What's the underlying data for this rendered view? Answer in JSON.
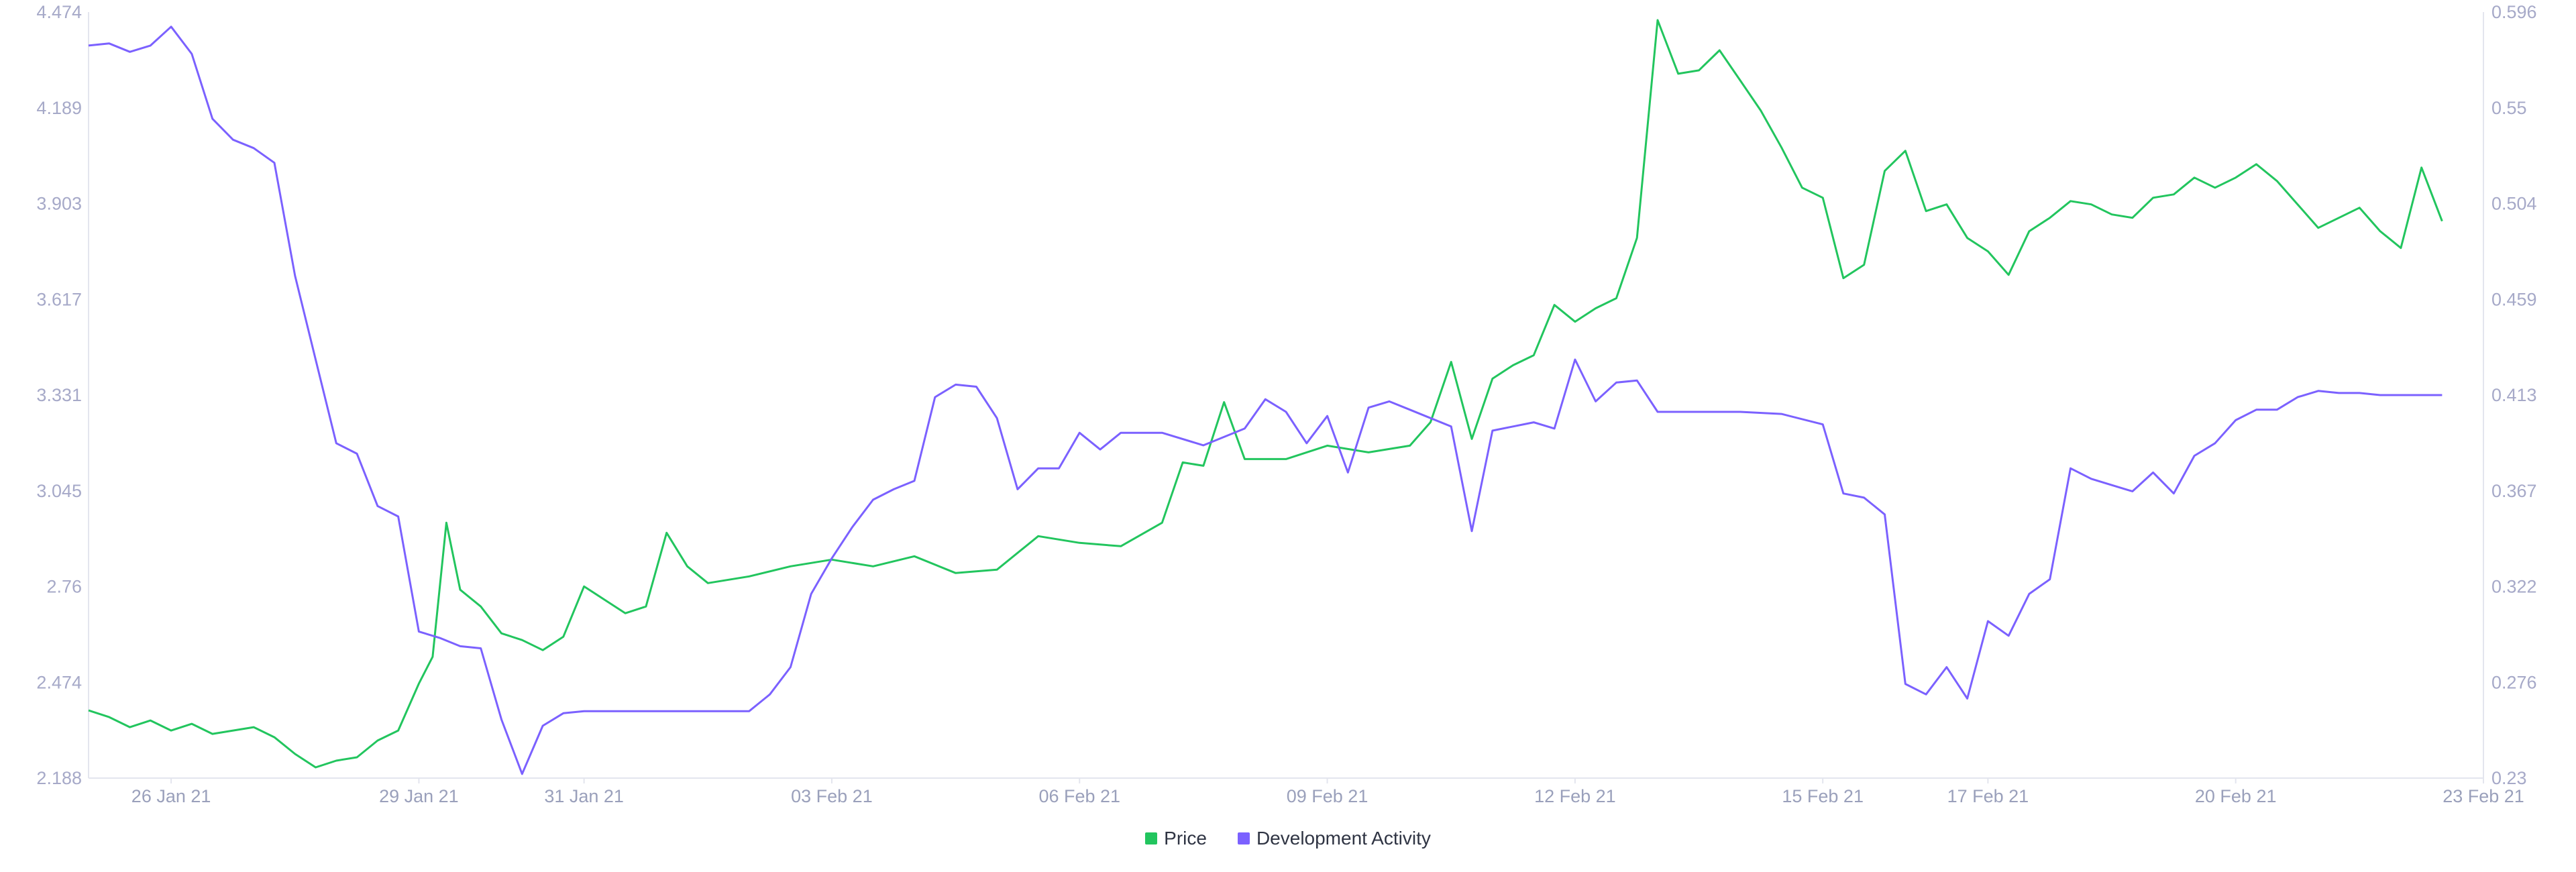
{
  "colors": {
    "price": "#22c55e",
    "development_activity": "#7b61ff",
    "axis_text": "#a6a9c8",
    "axis_line": "#e3e5ee"
  },
  "legend": {
    "price_label": "Price",
    "development_activity_label": "Development Activity"
  },
  "chart_data": {
    "type": "line",
    "title": "",
    "grid": false,
    "legend_position": "bottom-center",
    "x": {
      "start": "25 Jan 21",
      "end": "23 Feb 21",
      "tick_labels": [
        "26 Jan 21",
        "29 Jan 21",
        "31 Jan 21",
        "03 Feb 21",
        "06 Feb 21",
        "09 Feb 21",
        "12 Feb 21",
        "15 Feb 21",
        "17 Feb 21",
        "20 Feb 21",
        "23 Feb 21"
      ]
    },
    "y_left": {
      "range": [
        2.188,
        4.474
      ],
      "tick_labels": [
        "4.474",
        "4.189",
        "3.903",
        "3.617",
        "3.331",
        "3.045",
        "2.76",
        "2.474",
        "2.188"
      ]
    },
    "y_right": {
      "range": [
        0.23,
        0.596
      ],
      "tick_labels": [
        "0.596",
        "0.55",
        "0.504",
        "0.459",
        "0.413",
        "0.367",
        "0.322",
        "0.276",
        "0.23"
      ]
    },
    "series": [
      {
        "name": "Price",
        "axis": "left",
        "points": [
          [
            "2021-01-25",
            2.39
          ],
          [
            "2021-01-25T06",
            2.37
          ],
          [
            "2021-01-25T12",
            2.34
          ],
          [
            "2021-01-25T18",
            2.36
          ],
          [
            "2021-01-26",
            2.33
          ],
          [
            "2021-01-26T06",
            2.35
          ],
          [
            "2021-01-26T12",
            2.32
          ],
          [
            "2021-01-26T18",
            2.33
          ],
          [
            "2021-01-27",
            2.34
          ],
          [
            "2021-01-27T06",
            2.31
          ],
          [
            "2021-01-27T12",
            2.26
          ],
          [
            "2021-01-27T18",
            2.22
          ],
          [
            "2021-01-28",
            2.24
          ],
          [
            "2021-01-28T06",
            2.25
          ],
          [
            "2021-01-28T12",
            2.3
          ],
          [
            "2021-01-28T18",
            2.33
          ],
          [
            "2021-01-29",
            2.47
          ],
          [
            "2021-01-29T04",
            2.55
          ],
          [
            "2021-01-29T08",
            2.95
          ],
          [
            "2021-01-29T12",
            2.75
          ],
          [
            "2021-01-29T18",
            2.7
          ],
          [
            "2021-01-30",
            2.62
          ],
          [
            "2021-01-30T06",
            2.6
          ],
          [
            "2021-01-30T12",
            2.57
          ],
          [
            "2021-01-30T18",
            2.61
          ],
          [
            "2021-01-31",
            2.76
          ],
          [
            "2021-01-31T06",
            2.72
          ],
          [
            "2021-01-31T12",
            2.68
          ],
          [
            "2021-01-31T18",
            2.7
          ],
          [
            "2021-02-01",
            2.92
          ],
          [
            "2021-02-01T06",
            2.82
          ],
          [
            "2021-02-01T12",
            2.77
          ],
          [
            "2021-02-02",
            2.79
          ],
          [
            "2021-02-02T12",
            2.82
          ],
          [
            "2021-02-03",
            2.84
          ],
          [
            "2021-02-03T12",
            2.82
          ],
          [
            "2021-02-04",
            2.85
          ],
          [
            "2021-02-04T12",
            2.8
          ],
          [
            "2021-02-05",
            2.81
          ],
          [
            "2021-02-05T12",
            2.91
          ],
          [
            "2021-02-06",
            2.89
          ],
          [
            "2021-02-06T12",
            2.88
          ],
          [
            "2021-02-07",
            2.95
          ],
          [
            "2021-02-07T06",
            3.13
          ],
          [
            "2021-02-07T12",
            3.12
          ],
          [
            "2021-02-07T18",
            3.31
          ],
          [
            "2021-02-08",
            3.14
          ],
          [
            "2021-02-08T12",
            3.14
          ],
          [
            "2021-02-09",
            3.18
          ],
          [
            "2021-02-09T12",
            3.16
          ],
          [
            "2021-02-10",
            3.18
          ],
          [
            "2021-02-10T06",
            3.25
          ],
          [
            "2021-02-10T12",
            3.43
          ],
          [
            "2021-02-10T18",
            3.2
          ],
          [
            "2021-02-11",
            3.38
          ],
          [
            "2021-02-11T06",
            3.42
          ],
          [
            "2021-02-11T12",
            3.45
          ],
          [
            "2021-02-11T18",
            3.6
          ],
          [
            "2021-02-12",
            3.55
          ],
          [
            "2021-02-12T06",
            3.59
          ],
          [
            "2021-02-12T12",
            3.62
          ],
          [
            "2021-02-12T18",
            3.8
          ],
          [
            "2021-02-13",
            4.45
          ],
          [
            "2021-02-13T06",
            4.29
          ],
          [
            "2021-02-13T12",
            4.3
          ],
          [
            "2021-02-13T18",
            4.36
          ],
          [
            "2021-02-14",
            4.27
          ],
          [
            "2021-02-14T06",
            4.18
          ],
          [
            "2021-02-14T12",
            4.07
          ],
          [
            "2021-02-14T18",
            3.95
          ],
          [
            "2021-02-15",
            3.92
          ],
          [
            "2021-02-15T06",
            3.68
          ],
          [
            "2021-02-15T12",
            3.72
          ],
          [
            "2021-02-15T18",
            4.0
          ],
          [
            "2021-02-16",
            4.06
          ],
          [
            "2021-02-16T06",
            3.88
          ],
          [
            "2021-02-16T12",
            3.9
          ],
          [
            "2021-02-16T18",
            3.8
          ],
          [
            "2021-02-17",
            3.76
          ],
          [
            "2021-02-17T06",
            3.69
          ],
          [
            "2021-02-17T12",
            3.82
          ],
          [
            "2021-02-17T18",
            3.86
          ],
          [
            "2021-02-18",
            3.91
          ],
          [
            "2021-02-18T06",
            3.9
          ],
          [
            "2021-02-18T12",
            3.87
          ],
          [
            "2021-02-18T18",
            3.86
          ],
          [
            "2021-02-19",
            3.92
          ],
          [
            "2021-02-19T06",
            3.93
          ],
          [
            "2021-02-19T12",
            3.98
          ],
          [
            "2021-02-19T18",
            3.95
          ],
          [
            "2021-02-20",
            3.98
          ],
          [
            "2021-02-20T06",
            4.02
          ],
          [
            "2021-02-20T12",
            3.97
          ],
          [
            "2021-02-20T18",
            3.9
          ],
          [
            "2021-02-21",
            3.83
          ],
          [
            "2021-02-21T06",
            3.86
          ],
          [
            "2021-02-21T12",
            3.89
          ],
          [
            "2021-02-21T18",
            3.82
          ],
          [
            "2021-02-22",
            3.77
          ],
          [
            "2021-02-22T06",
            4.01
          ],
          [
            "2021-02-22T12",
            3.85
          ]
        ]
      },
      {
        "name": "Development Activity",
        "axis": "right",
        "points": [
          [
            "2021-01-25",
            0.58
          ],
          [
            "2021-01-25T06",
            0.581
          ],
          [
            "2021-01-25T12",
            0.577
          ],
          [
            "2021-01-25T18",
            0.58
          ],
          [
            "2021-01-26",
            0.589
          ],
          [
            "2021-01-26T06",
            0.576
          ],
          [
            "2021-01-26T12",
            0.545
          ],
          [
            "2021-01-26T18",
            0.535
          ],
          [
            "2021-01-27",
            0.531
          ],
          [
            "2021-01-27T06",
            0.524
          ],
          [
            "2021-01-27T12",
            0.47
          ],
          [
            "2021-01-27T18",
            0.43
          ],
          [
            "2021-01-28",
            0.39
          ],
          [
            "2021-01-28T06",
            0.385
          ],
          [
            "2021-01-28T12",
            0.36
          ],
          [
            "2021-01-28T18",
            0.355
          ],
          [
            "2021-01-29",
            0.3
          ],
          [
            "2021-01-29T06",
            0.297
          ],
          [
            "2021-01-29T12",
            0.293
          ],
          [
            "2021-01-29T18",
            0.292
          ],
          [
            "2021-01-30",
            0.258
          ],
          [
            "2021-01-30T06",
            0.232
          ],
          [
            "2021-01-30T12",
            0.255
          ],
          [
            "2021-01-30T18",
            0.261
          ],
          [
            "2021-01-31",
            0.262
          ],
          [
            "2021-01-31T12",
            0.262
          ],
          [
            "2021-02-01",
            0.262
          ],
          [
            "2021-02-01T12",
            0.262
          ],
          [
            "2021-02-02",
            0.262
          ],
          [
            "2021-02-02T06",
            0.27
          ],
          [
            "2021-02-02T12",
            0.283
          ],
          [
            "2021-02-02T18",
            0.318
          ],
          [
            "2021-02-03",
            0.335
          ],
          [
            "2021-02-03T06",
            0.35
          ],
          [
            "2021-02-03T12",
            0.363
          ],
          [
            "2021-02-03T18",
            0.368
          ],
          [
            "2021-02-04",
            0.372
          ],
          [
            "2021-02-04T06",
            0.412
          ],
          [
            "2021-02-04T12",
            0.418
          ],
          [
            "2021-02-04T18",
            0.417
          ],
          [
            "2021-02-05",
            0.402
          ],
          [
            "2021-02-05T06",
            0.368
          ],
          [
            "2021-02-05T12",
            0.378
          ],
          [
            "2021-02-05T18",
            0.378
          ],
          [
            "2021-02-06",
            0.395
          ],
          [
            "2021-02-06T06",
            0.387
          ],
          [
            "2021-02-06T12",
            0.395
          ],
          [
            "2021-02-06T18",
            0.395
          ],
          [
            "2021-02-07",
            0.395
          ],
          [
            "2021-02-07T12",
            0.389
          ],
          [
            "2021-02-08",
            0.397
          ],
          [
            "2021-02-08T06",
            0.411
          ],
          [
            "2021-02-08T12",
            0.405
          ],
          [
            "2021-02-08T18",
            0.39
          ],
          [
            "2021-02-09",
            0.403
          ],
          [
            "2021-02-09T06",
            0.376
          ],
          [
            "2021-02-09T12",
            0.407
          ],
          [
            "2021-02-09T18",
            0.41
          ],
          [
            "2021-02-10",
            0.406
          ],
          [
            "2021-02-10T06",
            0.402
          ],
          [
            "2021-02-10T12",
            0.398
          ],
          [
            "2021-02-10T18",
            0.348
          ],
          [
            "2021-02-11",
            0.396
          ],
          [
            "2021-02-11T06",
            0.398
          ],
          [
            "2021-02-11T12",
            0.4
          ],
          [
            "2021-02-11T18",
            0.397
          ],
          [
            "2021-02-12",
            0.43
          ],
          [
            "2021-02-12T06",
            0.41
          ],
          [
            "2021-02-12T12",
            0.419
          ],
          [
            "2021-02-12T18",
            0.42
          ],
          [
            "2021-02-13",
            0.405
          ],
          [
            "2021-02-13T12",
            0.405
          ],
          [
            "2021-02-14",
            0.405
          ],
          [
            "2021-02-14T12",
            0.404
          ],
          [
            "2021-02-15",
            0.399
          ],
          [
            "2021-02-15T06",
            0.366
          ],
          [
            "2021-02-15T12",
            0.364
          ],
          [
            "2021-02-15T18",
            0.356
          ],
          [
            "2021-02-16",
            0.275
          ],
          [
            "2021-02-16T06",
            0.27
          ],
          [
            "2021-02-16T12",
            0.283
          ],
          [
            "2021-02-16T18",
            0.268
          ],
          [
            "2021-02-17",
            0.305
          ],
          [
            "2021-02-17T06",
            0.298
          ],
          [
            "2021-02-17T12",
            0.318
          ],
          [
            "2021-02-17T18",
            0.325
          ],
          [
            "2021-02-18",
            0.378
          ],
          [
            "2021-02-18T06",
            0.373
          ],
          [
            "2021-02-18T12",
            0.37
          ],
          [
            "2021-02-18T18",
            0.367
          ],
          [
            "2021-02-19",
            0.376
          ],
          [
            "2021-02-19T06",
            0.366
          ],
          [
            "2021-02-19T12",
            0.384
          ],
          [
            "2021-02-19T18",
            0.39
          ],
          [
            "2021-02-20",
            0.401
          ],
          [
            "2021-02-20T06",
            0.406
          ],
          [
            "2021-02-20T12",
            0.406
          ],
          [
            "2021-02-20T18",
            0.412
          ],
          [
            "2021-02-21",
            0.415
          ],
          [
            "2021-02-21T06",
            0.414
          ],
          [
            "2021-02-21T12",
            0.414
          ],
          [
            "2021-02-21T18",
            0.413
          ],
          [
            "2021-02-22",
            0.413
          ],
          [
            "2021-02-22T12",
            0.413
          ]
        ]
      }
    ]
  }
}
